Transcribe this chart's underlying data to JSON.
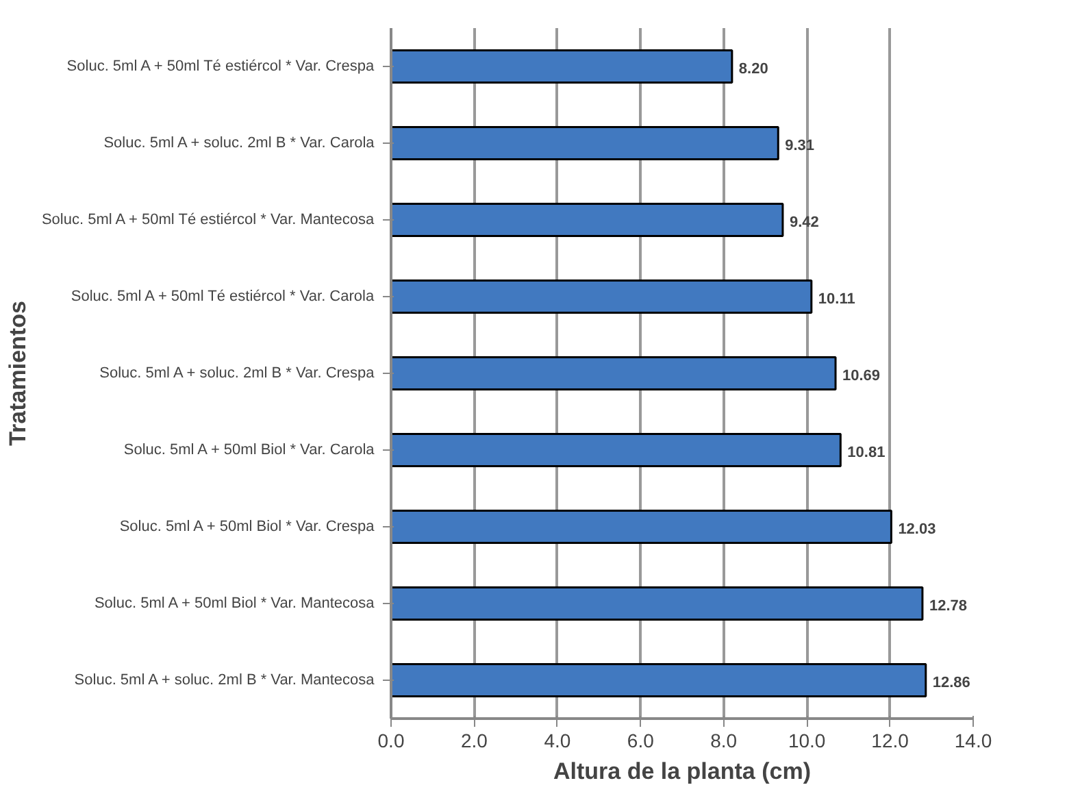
{
  "chart_data": {
    "type": "bar",
    "orientation": "horizontal",
    "xlabel": "Altura de la planta (cm)",
    "ylabel": "Tratamientos",
    "categories": [
      "Soluc. 5ml A + 50ml Té estiércol * Var. Crespa",
      "Soluc. 5ml A + soluc. 2ml B * Var. Carola",
      "Soluc. 5ml A + 50ml Té estiércol * Var. Mantecosa",
      "Soluc. 5ml A + 50ml Té estiércol * Var. Carola",
      "Soluc. 5ml A + soluc. 2ml B * Var. Crespa",
      "Soluc. 5ml A + 50ml Biol * Var. Carola",
      "Soluc. 5ml A + 50ml Biol * Var. Crespa",
      "Soluc. 5ml A + 50ml Biol * Var. Mantecosa",
      "Soluc. 5ml A + soluc. 2ml B * Var. Mantecosa"
    ],
    "values": [
      8.2,
      9.31,
      9.42,
      10.11,
      10.69,
      10.81,
      12.03,
      12.78,
      12.86
    ],
    "value_labels": [
      "8.20",
      "9.31",
      "9.42",
      "10.11",
      "10.69",
      "10.81",
      "12.03",
      "12.78",
      "12.86"
    ],
    "color": "#4179c0",
    "xlim": [
      0,
      14
    ],
    "xticks": [
      "0.0",
      "2.0",
      "4.0",
      "6.0",
      "8.0",
      "10.0",
      "12.0",
      "14.0"
    ],
    "grid": "x"
  }
}
